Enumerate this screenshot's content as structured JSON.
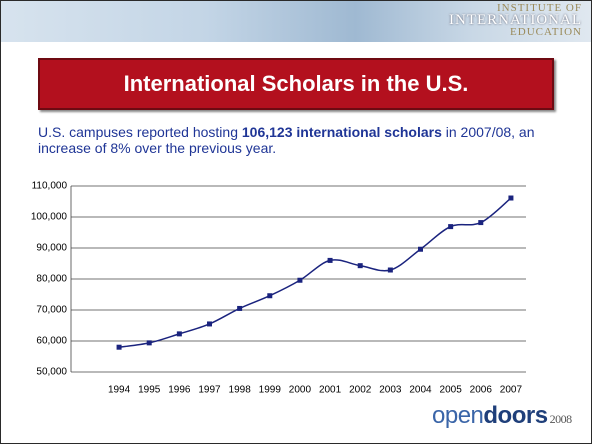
{
  "header": {
    "logo": [
      "INSTITUTE OF",
      "INTERNATIONAL",
      "EDUCATION"
    ]
  },
  "chart_data": {
    "type": "line",
    "title": "International Scholars in the U.S.",
    "subtitle_parts": [
      "U.S. campuses reported hosting ",
      "106,123 international scholars",
      " in 2007/08, an increase of 8% over the previous year."
    ],
    "categories": [
      "1994",
      "1995",
      "1996",
      "1997",
      "1998",
      "1999",
      "2000",
      "2001",
      "2002",
      "2003",
      "2004",
      "2005",
      "2006",
      "2007"
    ],
    "values": [
      58000,
      59400,
      62300,
      65500,
      70500,
      74600,
      79600,
      86000,
      84300,
      82900,
      89600,
      96900,
      98200,
      106123
    ],
    "color": "#1a237e",
    "ylim": [
      50000,
      110000
    ],
    "yticks": [
      {
        "value": 50000,
        "label": "50,000"
      },
      {
        "value": 60000,
        "label": "60,000"
      },
      {
        "value": 70000,
        "label": "70,000"
      },
      {
        "value": 80000,
        "label": "80,000"
      },
      {
        "value": 90000,
        "label": "90,000"
      },
      {
        "value": 100000,
        "label": "100,000"
      },
      {
        "value": 110000,
        "label": "110,000"
      }
    ],
    "grid": true,
    "smooth": true
  },
  "footer": {
    "brand": [
      "open",
      "doors",
      "2008"
    ]
  }
}
